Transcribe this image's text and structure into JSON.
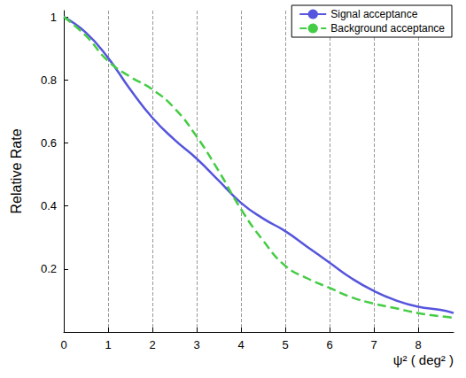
{
  "chart_data": {
    "type": "line",
    "y_label": "Relative Rate",
    "x_label": "ψ² ( deg² )",
    "series": [
      {
        "name": "Signal acceptance",
        "color": "#5555dd",
        "line_style": "solid",
        "x": [
          0,
          0.5,
          1,
          1.5,
          2,
          2.5,
          3,
          3.5,
          4,
          4.5,
          5,
          5.5,
          6,
          6.5,
          7,
          7.5,
          8,
          8.5,
          8.8
        ],
        "values": [
          1,
          0.95,
          0.87,
          0.77,
          0.68,
          0.61,
          0.55,
          0.48,
          0.41,
          0.36,
          0.32,
          0.27,
          0.22,
          0.17,
          0.13,
          0.1,
          0.08,
          0.07,
          0.06
        ]
      },
      {
        "name": "Background acceptance",
        "color": "#44cc44",
        "line_style": "dashed",
        "x": [
          0,
          0.5,
          1,
          1.5,
          2,
          2.5,
          3,
          3.5,
          4,
          4.5,
          5,
          5.5,
          6,
          6.5,
          7,
          7.5,
          8,
          8.5,
          8.8
        ],
        "values": [
          1,
          0.94,
          0.86,
          0.81,
          0.77,
          0.71,
          0.62,
          0.51,
          0.39,
          0.29,
          0.21,
          0.17,
          0.14,
          0.11,
          0.09,
          0.075,
          0.06,
          0.05,
          0.045
        ]
      }
    ],
    "xlim": [
      0,
      8.8
    ],
    "xticks": [
      0,
      1,
      2,
      3,
      4,
      5,
      6,
      7,
      8
    ],
    "ylim": [
      0,
      1.02
    ],
    "yticks": [
      0.2,
      0.4,
      0.6,
      0.8,
      1
    ],
    "grid": true,
    "legend": "upper right"
  }
}
